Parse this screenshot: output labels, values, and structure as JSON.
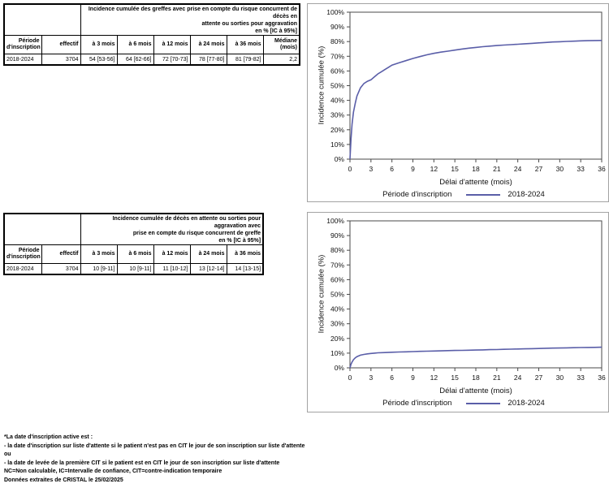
{
  "tables": [
    {
      "header_lines": [
        "Incidence cumulée des greffes avec prise en compte du risque concurrent de décès en",
        "attente ou sorties pour aggravation",
        "en % [IC à 95%]"
      ],
      "columns": [
        "Période d'inscription",
        "effectif",
        "à 3 mois",
        "à 6 mois",
        "à 12 mois",
        "à 24 mois",
        "à 36 mois",
        "Médiane (mois)"
      ],
      "row": [
        "2018-2024",
        "3704",
        "54 [53-56]",
        "64 [62-66]",
        "72 [70-73]",
        "78 [77-80]",
        "81 [79-82]",
        "2,2"
      ]
    },
    {
      "header_lines": [
        "Incidence cumulée de décès en attente ou sorties pour aggravation avec",
        "prise en compte du risque concurrent de greffe",
        "en % [IC à 95%]"
      ],
      "columns": [
        "Période d'inscription",
        "effectif",
        "à 3 mois",
        "à 6 mois",
        "à 12 mois",
        "à 24 mois",
        "à 36 mois"
      ],
      "row": [
        "2018-2024",
        "3704",
        "10 [9-11]",
        "10 [9-11]",
        "11 [10-12]",
        "13 [12-14]",
        "14 [13-15]"
      ]
    }
  ],
  "chart_data": [
    {
      "type": "line",
      "title": "",
      "xlabel": "Délai d'attente (mois)",
      "ylabel": "Incidence cumulée (%)",
      "legend_title": "Période d'inscription",
      "legend_position": "bottom",
      "grid": false,
      "xlim": [
        0,
        36
      ],
      "ylim": [
        0,
        100
      ],
      "xticks": [
        0,
        3,
        6,
        9,
        12,
        15,
        18,
        21,
        24,
        27,
        30,
        33,
        36
      ],
      "yticks": [
        0,
        10,
        20,
        30,
        40,
        50,
        60,
        70,
        80,
        90,
        100
      ],
      "ytick_suffix": "%",
      "line_color": "#5a5ea8",
      "series": [
        {
          "name": "2018-2024",
          "points": [
            [
              0,
              0
            ],
            [
              0.15,
              14
            ],
            [
              0.3,
              24
            ],
            [
              0.5,
              32
            ],
            [
              0.75,
              38
            ],
            [
              1,
              43
            ],
            [
              1.5,
              48.5
            ],
            [
              2,
              51.5
            ],
            [
              2.5,
              53
            ],
            [
              3,
              54
            ],
            [
              3.5,
              56
            ],
            [
              4,
              58
            ],
            [
              4.5,
              59.5
            ],
            [
              5,
              61
            ],
            [
              5.5,
              62.5
            ],
            [
              6,
              64
            ],
            [
              7,
              65.5
            ],
            [
              8,
              67
            ],
            [
              9,
              68.5
            ],
            [
              10,
              69.8
            ],
            [
              11,
              71
            ],
            [
              12,
              72
            ],
            [
              13,
              72.8
            ],
            [
              14,
              73.5
            ],
            [
              15,
              74.2
            ],
            [
              16,
              74.9
            ],
            [
              17,
              75.5
            ],
            [
              18,
              76
            ],
            [
              19,
              76.5
            ],
            [
              20,
              76.9
            ],
            [
              21,
              77.3
            ],
            [
              22,
              77.6
            ],
            [
              23,
              77.9
            ],
            [
              24,
              78.2
            ],
            [
              25,
              78.5
            ],
            [
              26,
              78.8
            ],
            [
              27,
              79.1
            ],
            [
              28,
              79.4
            ],
            [
              29,
              79.7
            ],
            [
              30,
              79.9
            ],
            [
              31,
              80.1
            ],
            [
              32,
              80.3
            ],
            [
              33,
              80.5
            ],
            [
              34,
              80.6
            ],
            [
              35,
              80.7
            ],
            [
              36,
              80.8
            ]
          ]
        }
      ]
    },
    {
      "type": "line",
      "title": "",
      "xlabel": "Délai d'attente (mois)",
      "ylabel": "Incidence cumulée (%)",
      "legend_title": "Période d'inscription",
      "legend_position": "bottom",
      "grid": false,
      "xlim": [
        0,
        36
      ],
      "ylim": [
        0,
        100
      ],
      "xticks": [
        0,
        3,
        6,
        9,
        12,
        15,
        18,
        21,
        24,
        27,
        30,
        33,
        36
      ],
      "yticks": [
        0,
        10,
        20,
        30,
        40,
        50,
        60,
        70,
        80,
        90,
        100
      ],
      "ytick_suffix": "%",
      "line_color": "#5a5ea8",
      "series": [
        {
          "name": "2018-2024",
          "points": [
            [
              0,
              0
            ],
            [
              0.15,
              2.5
            ],
            [
              0.3,
              4
            ],
            [
              0.5,
              5.5
            ],
            [
              0.75,
              6.8
            ],
            [
              1,
              7.6
            ],
            [
              1.5,
              8.6
            ],
            [
              2,
              9.1
            ],
            [
              2.5,
              9.5
            ],
            [
              3,
              9.8
            ],
            [
              3.5,
              10
            ],
            [
              4,
              10.2
            ],
            [
              5,
              10.4
            ],
            [
              6,
              10.6
            ],
            [
              7,
              10.75
            ],
            [
              8,
              10.9
            ],
            [
              9,
              11.05
            ],
            [
              10,
              11.2
            ],
            [
              11,
              11.3
            ],
            [
              12,
              11.45
            ],
            [
              13,
              11.55
            ],
            [
              14,
              11.7
            ],
            [
              15,
              11.8
            ],
            [
              16,
              11.9
            ],
            [
              17,
              12
            ],
            [
              18,
              12.1
            ],
            [
              19,
              12.2
            ],
            [
              20,
              12.35
            ],
            [
              21,
              12.45
            ],
            [
              22,
              12.6
            ],
            [
              23,
              12.7
            ],
            [
              24,
              12.8
            ],
            [
              25,
              12.95
            ],
            [
              26,
              13.05
            ],
            [
              27,
              13.15
            ],
            [
              28,
              13.3
            ],
            [
              29,
              13.4
            ],
            [
              30,
              13.5
            ],
            [
              31,
              13.6
            ],
            [
              32,
              13.7
            ],
            [
              33,
              13.8
            ],
            [
              34,
              13.85
            ],
            [
              35,
              13.95
            ],
            [
              36,
              14.05
            ]
          ]
        }
      ]
    }
  ],
  "footnotes": [
    "*La date d'inscription active est :",
    "- la date d'inscription sur liste d'attente si le patient n'est pas en CIT le jour de son inscription sur liste d'attente",
    "ou",
    "- la date de levée de la première CIT si le patient est en CIT le jour de son inscription sur liste d'attente",
    "NC=Non calculable, IC=Intervalle de confiance, CIT=contre-indication temporaire",
    "Données extraites de CRISTAL le 25/02/2025"
  ]
}
